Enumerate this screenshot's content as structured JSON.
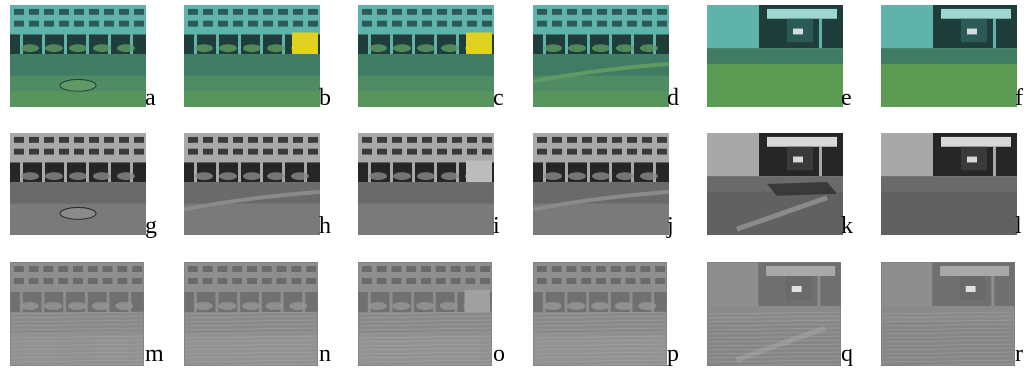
{
  "figure": {
    "rows": [
      {
        "style": "color",
        "panels": [
          {
            "label": "a",
            "scene": "building-manhole"
          },
          {
            "label": "b",
            "scene": "building-yellow-container"
          },
          {
            "label": "c",
            "scene": "building-yellow-container"
          },
          {
            "label": "d",
            "scene": "building-curb"
          },
          {
            "label": "e",
            "scene": "corner-grass"
          },
          {
            "label": "f",
            "scene": "corner-wall"
          }
        ]
      },
      {
        "style": "grayscale",
        "panels": [
          {
            "label": "g",
            "scene": "building-manhole"
          },
          {
            "label": "h",
            "scene": "building-curb"
          },
          {
            "label": "i",
            "scene": "building-container"
          },
          {
            "label": "j",
            "scene": "building-curb"
          },
          {
            "label": "k",
            "scene": "corner-debris"
          },
          {
            "label": "l",
            "scene": "corner-wall"
          }
        ]
      },
      {
        "style": "edge-filtered",
        "panels": [
          {
            "label": "m",
            "scene": "building-facade"
          },
          {
            "label": "n",
            "scene": "building-facade"
          },
          {
            "label": "o",
            "scene": "building-container"
          },
          {
            "label": "p",
            "scene": "building-facade"
          },
          {
            "label": "q",
            "scene": "corner-curb"
          },
          {
            "label": "r",
            "scene": "corner-wall"
          }
        ]
      }
    ],
    "palettes": {
      "color": {
        "sky": "#9fd6cf",
        "facade": "#5fb3ab",
        "window": "#2b5a57",
        "under": "#1f3d3a",
        "ground": "#3f7c63",
        "ground2": "#5f9a63",
        "grass": "#6aa84f",
        "accent": "#e0d020"
      },
      "grayscale": {
        "sky": "#d8d8d8",
        "facade": "#a8a8a8",
        "window": "#3a3a3a",
        "under": "#262626",
        "ground": "#6a6a6a",
        "ground2": "#8a8a8a",
        "grass": "#5e5e5e",
        "accent": "#bcbcbc"
      },
      "edge-filtered": {
        "sky": "#a8a8a8",
        "facade": "#8e8e8e",
        "window": "#6a6a6a",
        "under": "#707070",
        "ground": "#8a8a8a",
        "ground2": "#979797",
        "grass": "#858585",
        "accent": "#a0a0a0"
      }
    }
  }
}
